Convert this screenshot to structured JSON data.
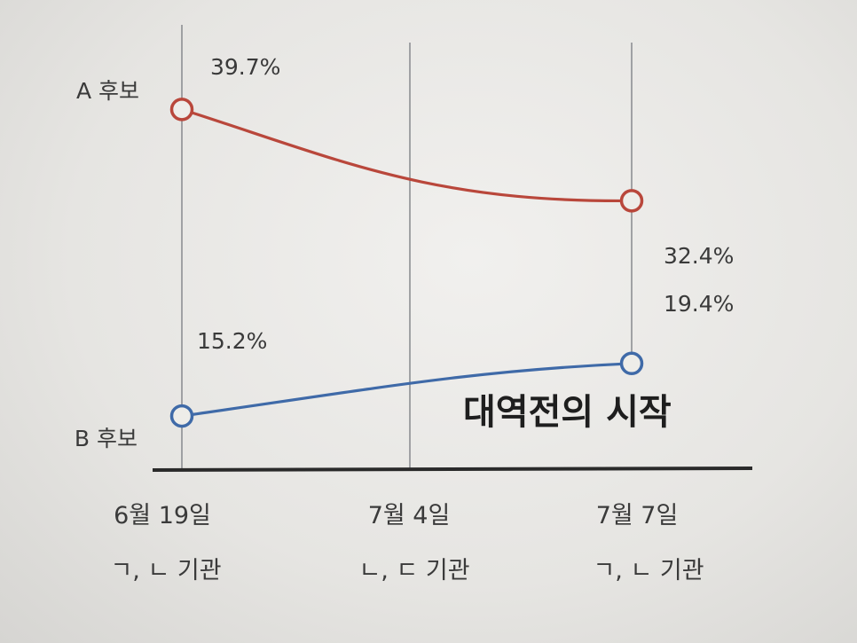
{
  "chart_data": {
    "type": "line",
    "title": "대역전의 시작",
    "x": [
      "6월 19일",
      "7월 4일",
      "7월 7일"
    ],
    "x_sublabels": [
      "ㄱ, ㄴ 기관",
      "ㄴ, ㄷ 기관",
      "ㄱ, ㄴ 기관"
    ],
    "series": [
      {
        "name": "A 후보",
        "color": "#b9473b",
        "points": [
          {
            "x": "6월 19일",
            "y": 39.7
          },
          {
            "x": "7월 7일",
            "y": 32.4
          }
        ],
        "labels": [
          "39.7%",
          "32.4%"
        ]
      },
      {
        "name": "B 후보",
        "color": "#3f6aa8",
        "points": [
          {
            "x": "6월 19일",
            "y": 15.2
          },
          {
            "x": "7월 7일",
            "y": 19.4
          }
        ],
        "labels": [
          "15.2%",
          "19.4%"
        ]
      }
    ],
    "grid": true
  }
}
